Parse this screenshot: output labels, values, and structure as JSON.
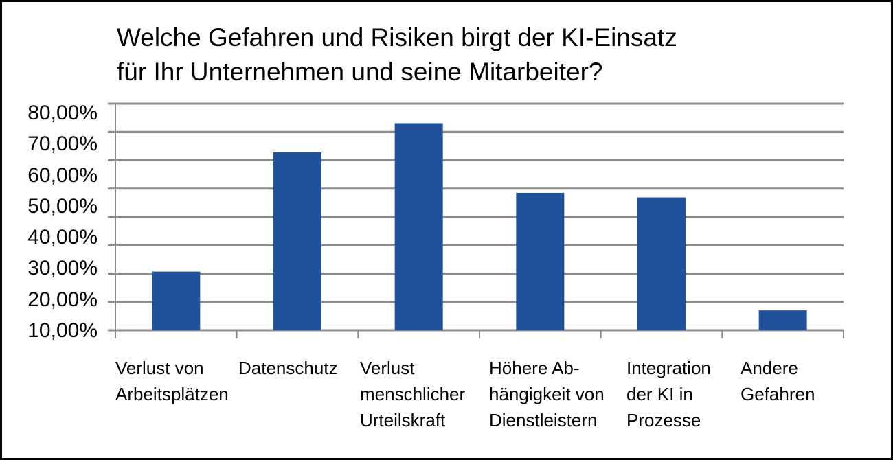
{
  "chart_data": {
    "type": "bar",
    "title": "Welche Gefahren und Risiken birgt der KI-Einsatz\nfür Ihr Unternehmen und seine Mitarbeiter?",
    "xlabel": "",
    "ylabel": "",
    "categories": [
      "Verlust von\nArbeitsplätzen",
      "Datenschutz",
      "Verlust\nmenschlicher\nUrteilskraft",
      "Höhere Ab-\nhängigkeit von\nDienstleistern",
      "Integration\nder KI in\nProzesse",
      "Andere\nGefahren"
    ],
    "values": [
      20.7,
      62.8,
      73.1,
      48.5,
      46.9,
      7.0
    ],
    "y_tick_labels": [
      "80,00%",
      "70,00%",
      "60,00%",
      "50,00%",
      "40,00%",
      "30,00%",
      "20,00%",
      "10,00%"
    ],
    "ylim": [
      0,
      80
    ],
    "grid": true,
    "legend": "none",
    "bar_color": "#22519b",
    "grid_color": "#8c8c8c"
  }
}
